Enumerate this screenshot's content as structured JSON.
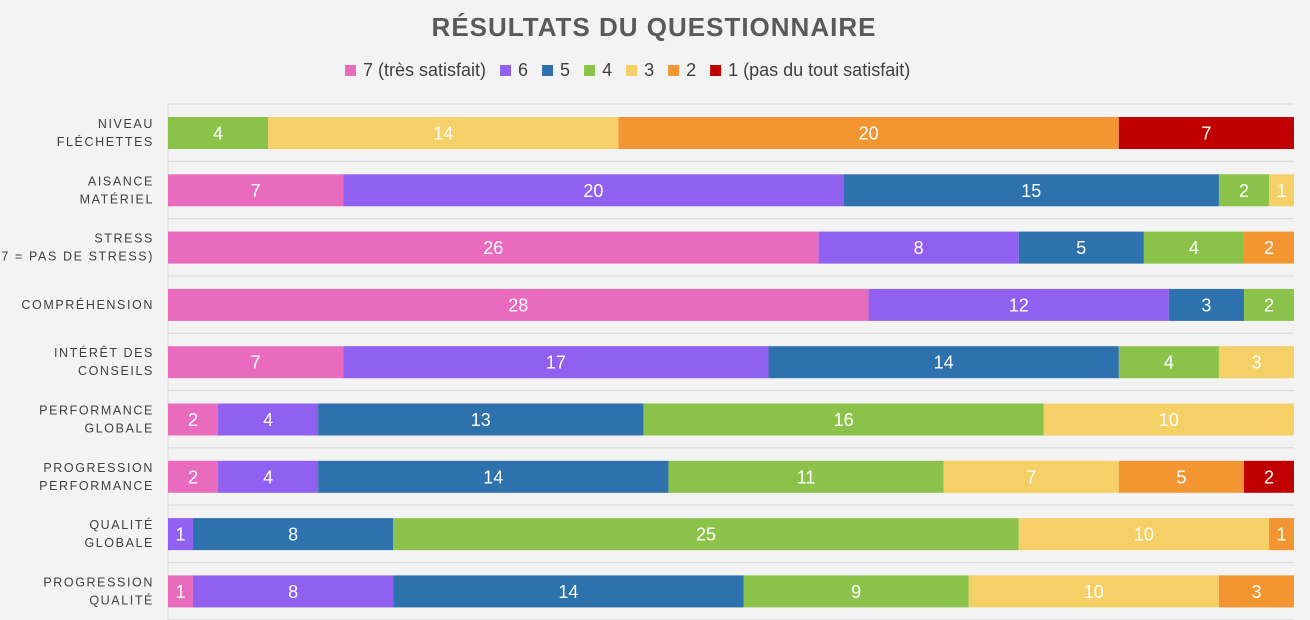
{
  "chart_data": {
    "type": "bar",
    "orientation": "horizontal",
    "stacked": true,
    "title": "RÉSULTATS DU QUESTIONNAIRE",
    "legend_position": "top",
    "categories": [
      [
        "NIVEAU",
        "FLÉCHETTES"
      ],
      [
        "AISANCE",
        "MATÉRIEL"
      ],
      [
        "STRESS",
        "(7 = PAS DE STRESS)"
      ],
      [
        "COMPRÉHENSION"
      ],
      [
        "INTÉRÊT DES",
        "CONSEILS"
      ],
      [
        "PERFORMANCE",
        "GLOBALE"
      ],
      [
        "PROGRESSION",
        "PERFORMANCE"
      ],
      [
        "QUALITÉ",
        "GLOBALE"
      ],
      [
        "PROGRESSION",
        "QUALITÉ"
      ]
    ],
    "xlim": [
      0,
      45
    ],
    "grid": true,
    "series": [
      {
        "name": "7 (très satisfait)",
        "color": "#e86bbd",
        "values": [
          0,
          7,
          26,
          28,
          7,
          2,
          2,
          0,
          1
        ]
      },
      {
        "name": "6",
        "color": "#9061f0",
        "values": [
          0,
          20,
          8,
          12,
          17,
          4,
          4,
          1,
          8
        ]
      },
      {
        "name": "5",
        "color": "#2d71ad",
        "values": [
          0,
          15,
          5,
          3,
          14,
          13,
          14,
          8,
          14
        ]
      },
      {
        "name": "4",
        "color": "#8bc34a",
        "values": [
          4,
          2,
          4,
          2,
          4,
          16,
          11,
          25,
          9
        ]
      },
      {
        "name": "3",
        "color": "#f4d066",
        "values": [
          14,
          1,
          0,
          0,
          3,
          10,
          7,
          10,
          10
        ]
      },
      {
        "name": "2",
        "color": "#f39530",
        "values": [
          20,
          0,
          2,
          0,
          0,
          0,
          5,
          1,
          3
        ]
      },
      {
        "name": "1 (pas du tout satisfait)",
        "color": "#c00000",
        "values": [
          7,
          0,
          0,
          0,
          0,
          0,
          2,
          0,
          0
        ]
      }
    ]
  }
}
